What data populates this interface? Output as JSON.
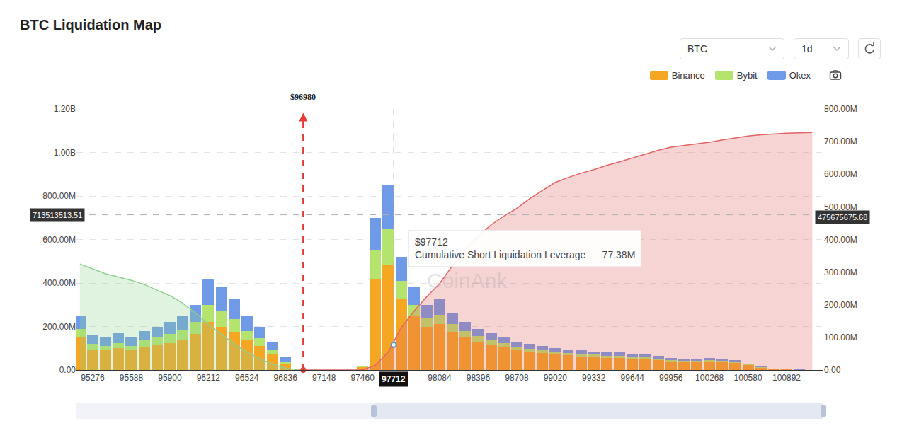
{
  "page": {
    "selects": [
      "BTC",
      "1d"
    ]
  },
  "chart_data": {
    "type": "bar",
    "title": "BTC Liquidation Map",
    "stacked": true,
    "grid": true,
    "legend": "top right",
    "x": [
      95172,
      95276,
      95380,
      95484,
      95588,
      95692,
      95796,
      95900,
      96004,
      96108,
      96212,
      96316,
      96420,
      96524,
      96628,
      96732,
      96836,
      96940,
      97044,
      97148,
      97252,
      97356,
      97460,
      97564,
      97668,
      97772,
      97876,
      97980,
      98084,
      98188,
      98292,
      98396,
      98500,
      98604,
      98708,
      98812,
      98916,
      99020,
      99124,
      99228,
      99332,
      99436,
      99540,
      99644,
      99748,
      99852,
      99956,
      100060,
      100164,
      100268,
      100372,
      100476,
      100580,
      100684,
      100788,
      100892,
      100996,
      101100
    ],
    "xlim": [
      95144,
      101190
    ],
    "xticks": [
      95276,
      95588,
      95900,
      96212,
      96524,
      96836,
      97148,
      97460,
      98084,
      98396,
      98708,
      99020,
      99332,
      99644,
      99956,
      100268,
      100580,
      100892
    ],
    "ylim": [
      0,
      1200
    ],
    "yticks": [
      {
        "value": 0,
        "label": "0.00"
      },
      {
        "value": 200,
        "label": "200.00M"
      },
      {
        "value": 400,
        "label": "400.00M"
      },
      {
        "value": 600,
        "label": "600.00M"
      },
      {
        "value": 800,
        "label": "800.00M"
      },
      {
        "value": 1000,
        "label": "1.00B"
      },
      {
        "value": 1200,
        "label": "1.20B"
      }
    ],
    "y2lim": [
      0,
      800
    ],
    "y2ticks": [
      {
        "value": 0,
        "label": "0.00"
      },
      {
        "value": 100,
        "label": "100.00M"
      },
      {
        "value": 200,
        "label": "200.00M"
      },
      {
        "value": 300,
        "label": "300.00M"
      },
      {
        "value": 400,
        "label": "400.00M"
      },
      {
        "value": 500,
        "label": "500.00M"
      },
      {
        "value": 600,
        "label": "600.00M"
      },
      {
        "value": 700,
        "label": "700.00M"
      },
      {
        "value": 800,
        "label": "800.00M"
      }
    ],
    "series": [
      {
        "name": "Binance",
        "color": "#f5a623",
        "values": [
          150,
          95,
          90,
          100,
          90,
          105,
          115,
          125,
          140,
          165,
          220,
          200,
          175,
          135,
          110,
          70,
          30,
          0,
          0,
          0,
          0,
          0,
          12,
          420,
          480,
          330,
          250,
          200,
          210,
          175,
          150,
          130,
          115,
          105,
          90,
          85,
          78,
          70,
          67,
          63,
          60,
          56,
          56,
          53,
          50,
          46,
          39,
          36,
          36,
          40,
          36,
          32,
          22,
          11,
          6,
          3,
          1,
          0
        ]
      },
      {
        "name": "Bybit",
        "color": "#b5e46e",
        "values": [
          40,
          25,
          22,
          25,
          22,
          30,
          35,
          40,
          45,
          55,
          80,
          70,
          60,
          45,
          35,
          25,
          10,
          0,
          0,
          0,
          0,
          0,
          3,
          130,
          170,
          80,
          50,
          40,
          45,
          35,
          30,
          25,
          22,
          18,
          16,
          14,
          12,
          12,
          11,
          10,
          10,
          9,
          9,
          8,
          8,
          7,
          6,
          5,
          5,
          6,
          5,
          5,
          3,
          2,
          1,
          0,
          0,
          0
        ]
      },
      {
        "name": "Okex",
        "color": "#6f9ae8",
        "values": [
          60,
          40,
          38,
          45,
          38,
          45,
          50,
          55,
          65,
          80,
          120,
          110,
          95,
          70,
          55,
          35,
          20,
          0,
          0,
          0,
          0,
          0,
          5,
          150,
          200,
          110,
          80,
          60,
          75,
          50,
          40,
          35,
          33,
          27,
          24,
          21,
          20,
          18,
          17,
          17,
          15,
          15,
          15,
          14,
          12,
          12,
          10,
          9,
          9,
          9,
          9,
          8,
          5,
          2,
          1,
          1,
          1,
          0
        ]
      },
      {
        "type": "area",
        "axis": "y2",
        "color": "#8fcf8f",
        "values": [
          325,
          310,
          295,
          285,
          275,
          262,
          245,
          228,
          205,
          175,
          140,
          110,
          80,
          55,
          35,
          18,
          6,
          0,
          null,
          null,
          null,
          null,
          null,
          null,
          null,
          null,
          null,
          null,
          null,
          null,
          null,
          null,
          null,
          null,
          null,
          null,
          null,
          null,
          null,
          null,
          null,
          null,
          null,
          null,
          null,
          null,
          null,
          null,
          null,
          null,
          null,
          null,
          null,
          null,
          null,
          null,
          null,
          null
        ]
      },
      {
        "name": "Cumulative Short Liquidation Leverage",
        "type": "area",
        "axis": "y2",
        "color": "#e26464",
        "values": [
          null,
          null,
          null,
          null,
          null,
          null,
          null,
          null,
          null,
          null,
          null,
          null,
          null,
          null,
          null,
          null,
          null,
          0,
          0,
          0,
          0,
          0,
          0,
          15,
          55,
          130,
          180,
          225,
          265,
          320,
          370,
          410,
          445,
          472,
          495,
          525,
          550,
          575,
          590,
          603,
          614,
          627,
          638,
          650,
          662,
          673,
          683,
          688,
          693,
          698,
          705,
          711,
          717,
          721,
          724,
          726,
          727,
          728
        ]
      }
    ],
    "current_price": {
      "x": 96980,
      "label": "$96980"
    },
    "crosshair": {
      "x": 97712,
      "x_label": "97712",
      "y": 713.51351351,
      "y_label": "713513513.51",
      "y2": 475.67567568,
      "y2_label": "475675675.68"
    },
    "tooltip": {
      "title": "$97712",
      "label": "Cumulative Short Liquidation Leverage",
      "value": 77.38,
      "value_label": "77.38M"
    },
    "watermark": "CoinAnk"
  }
}
